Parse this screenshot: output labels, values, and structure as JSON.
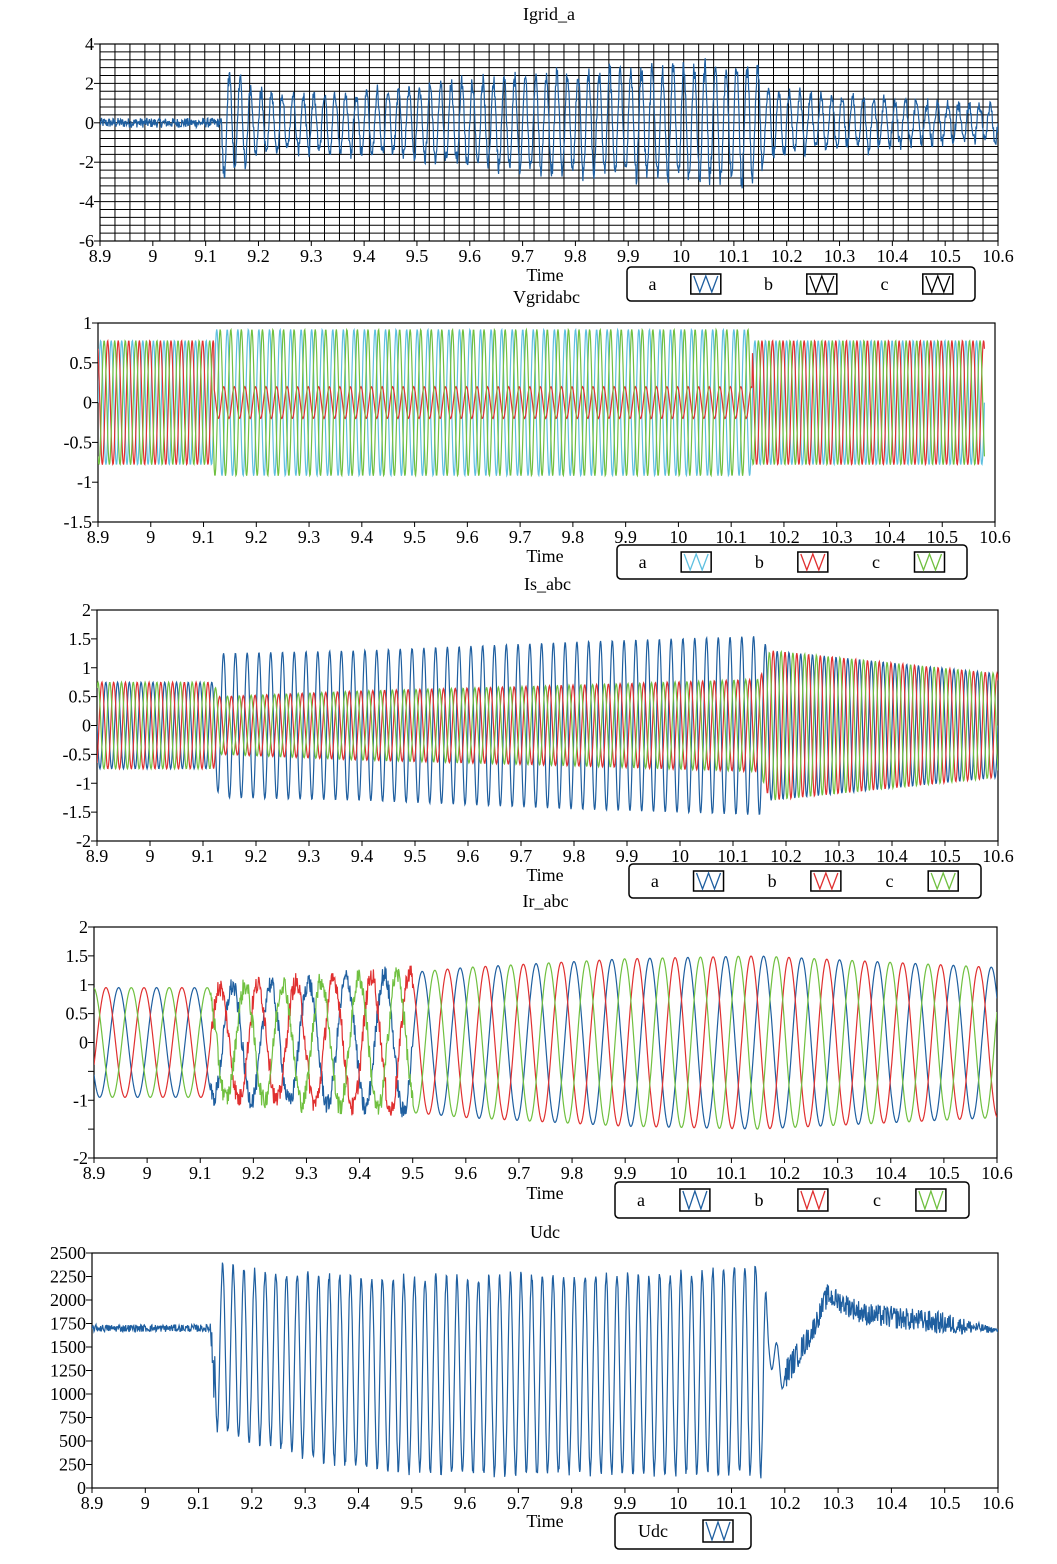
{
  "chart_data": [
    {
      "type": "line",
      "title": "Igrid_a",
      "xlabel": "Time",
      "ylabel": "",
      "xlim": [
        8.9,
        10.6
      ],
      "ylim": [
        -6,
        4
      ],
      "xticks": [
        "8.9",
        "9",
        "9.1",
        "9.2",
        "9.3",
        "9.4",
        "9.5",
        "9.6",
        "9.7",
        "9.8",
        "9.9",
        "10",
        "10.1",
        "10.2",
        "10.3",
        "10.4",
        "10.5",
        "10.6"
      ],
      "yticks": [
        "4",
        "2",
        "0",
        "-2",
        "-4",
        "-6"
      ],
      "grid": true,
      "legend": [
        "a",
        "b",
        "c"
      ],
      "legend_position": "bottom-right",
      "series": [
        {
          "name": "a",
          "color": "#1f5fa0",
          "x": [
            8.9,
            9.0,
            9.12,
            9.13,
            9.14,
            9.2,
            9.3,
            9.4,
            9.5,
            9.6,
            9.7,
            9.8,
            9.9,
            10.0,
            10.1,
            10.15,
            10.16,
            10.2,
            10.3,
            10.4,
            10.5,
            10.6
          ],
          "envelope": [
            0.3,
            0.3,
            0.4,
            3.0,
            3.0,
            1.8,
            1.5,
            1.8,
            2.0,
            2.3,
            2.6,
            2.8,
            3.0,
            3.1,
            3.2,
            3.2,
            2.0,
            1.7,
            1.5,
            1.3,
            1.1,
            1.0
          ]
        }
      ]
    },
    {
      "type": "line",
      "title": "Vgridabc",
      "xlabel": "Time",
      "ylabel": "",
      "xlim": [
        8.9,
        10.6
      ],
      "ylim": [
        -1.5,
        1
      ],
      "xticks": [
        "8.9",
        "9",
        "9.1",
        "9.2",
        "9.3",
        "9.4",
        "9.5",
        "9.6",
        "9.7",
        "9.8",
        "9.9",
        "10",
        "10.1",
        "10.2",
        "10.3",
        "10.4",
        "10.5",
        "10.6"
      ],
      "yticks": [
        "1",
        "0.5",
        "0",
        "-0.5",
        "-1",
        "-1.5"
      ],
      "grid": false,
      "legend": [
        "a",
        "b",
        "c"
      ],
      "legend_position": "bottom-right",
      "series": [
        {
          "name": "a",
          "color": "#5fc0e0",
          "x_start": 8.9,
          "x_end": 10.58,
          "amp_before": 0.78,
          "amp_fault": 0.92,
          "amp_after": 0.78
        },
        {
          "name": "b",
          "color": "#e03030",
          "x_start": 8.9,
          "x_end": 10.58,
          "amp_before": 0.78,
          "amp_fault": 0.2,
          "amp_after": 0.78
        },
        {
          "name": "c",
          "color": "#70c040",
          "x_start": 8.9,
          "x_end": 10.58,
          "amp_before": 0.78,
          "amp_fault": 0.92,
          "amp_after": 0.78
        }
      ],
      "fault_start": 9.12,
      "fault_end": 10.14
    },
    {
      "type": "line",
      "title": "Is_abc",
      "xlabel": "Time",
      "ylabel": "",
      "xlim": [
        8.9,
        10.6
      ],
      "ylim": [
        -2,
        2
      ],
      "xticks": [
        "8.9",
        "9",
        "9.1",
        "9.2",
        "9.3",
        "9.4",
        "9.5",
        "9.6",
        "9.7",
        "9.8",
        "9.9",
        "10",
        "10.1",
        "10.2",
        "10.3",
        "10.4",
        "10.5",
        "10.6"
      ],
      "yticks": [
        "2",
        "1.5",
        "1",
        "0.5",
        "0",
        "-0.5",
        "-1",
        "-1.5",
        "-2"
      ],
      "grid": false,
      "legend": [
        "a",
        "b",
        "c"
      ],
      "legend_position": "bottom-right",
      "series": [
        {
          "name": "a",
          "color": "#1f5fa0",
          "x": [
            8.9,
            9.12,
            9.13,
            9.4,
            9.8,
            10.15,
            10.17,
            10.6
          ],
          "envelope": [
            0.75,
            0.75,
            1.25,
            1.3,
            1.45,
            1.55,
            1.3,
            0.9
          ]
        },
        {
          "name": "b",
          "color": "#e03030",
          "x": [
            8.9,
            9.12,
            9.13,
            9.4,
            9.8,
            10.15,
            10.17,
            10.6
          ],
          "envelope": [
            0.75,
            0.75,
            0.5,
            0.6,
            0.7,
            0.8,
            1.3,
            0.9
          ]
        },
        {
          "name": "c",
          "color": "#70c040",
          "x": [
            8.9,
            9.12,
            9.13,
            9.4,
            9.8,
            10.15,
            10.17,
            10.6
          ],
          "envelope": [
            0.75,
            0.75,
            0.5,
            0.6,
            0.7,
            0.8,
            1.3,
            0.9
          ]
        }
      ]
    },
    {
      "type": "line",
      "title": "Ir_abc",
      "xlabel": "Time",
      "ylabel": "",
      "xlim": [
        8.9,
        10.6
      ],
      "ylim": [
        -2,
        2
      ],
      "xticks": [
        "8.9",
        "9",
        "9.1",
        "9.2",
        "9.3",
        "9.4",
        "9.5",
        "9.6",
        "9.7",
        "9.8",
        "9.9",
        "10",
        "10.1",
        "10.2",
        "10.3",
        "10.4",
        "10.5",
        "10.6"
      ],
      "yticks": [
        "2",
        "1.5",
        "1",
        "0.5",
        "0",
        "",
        "-1",
        "",
        "-2"
      ],
      "grid": false,
      "legend": [
        "a",
        "b",
        "c"
      ],
      "legend_position": "bottom-right",
      "series": [
        {
          "name": "a",
          "color": "#1f5fa0",
          "x": [
            8.9,
            9.12,
            9.3,
            9.6,
            9.9,
            10.15,
            10.6
          ],
          "envelope": [
            0.95,
            0.95,
            1.05,
            1.3,
            1.45,
            1.5,
            1.3
          ]
        },
        {
          "name": "b",
          "color": "#e03030",
          "x": [
            8.9,
            9.12,
            9.3,
            9.6,
            9.9,
            10.15,
            10.6
          ],
          "envelope": [
            0.95,
            0.95,
            1.05,
            1.3,
            1.45,
            1.5,
            1.3
          ]
        },
        {
          "name": "c",
          "color": "#70c040",
          "x": [
            8.9,
            9.12,
            9.3,
            9.6,
            9.9,
            10.15,
            10.6
          ],
          "envelope": [
            0.95,
            0.95,
            1.05,
            1.3,
            1.45,
            1.5,
            1.3
          ]
        }
      ]
    },
    {
      "type": "line",
      "title": "Udc",
      "xlabel": "Time",
      "ylabel": "",
      "xlim": [
        8.9,
        10.6
      ],
      "ylim": [
        0,
        2500
      ],
      "xticks": [
        "8.9",
        "9",
        "9.1",
        "9.2",
        "9.3",
        "9.4",
        "9.5",
        "9.6",
        "9.7",
        "9.8",
        "9.9",
        "10",
        "10.1",
        "10.2",
        "10.3",
        "10.4",
        "10.5",
        "10.6"
      ],
      "yticks": [
        "2500",
        "2250",
        "2000",
        "1750",
        "1500",
        "1250",
        "1000",
        "750",
        "500",
        "250",
        "0"
      ],
      "grid": false,
      "legend": [
        "Udc"
      ],
      "legend_position": "bottom-right",
      "series": [
        {
          "name": "Udc",
          "color": "#1f5fa0",
          "x": [
            8.9,
            9.12,
            9.13,
            9.2,
            9.3,
            9.4,
            9.6,
            9.8,
            10.0,
            10.16,
            10.17,
            10.2,
            10.25,
            10.28,
            10.35,
            10.5,
            10.6
          ],
          "y_max": [
            1750,
            1750,
            2450,
            2350,
            2330,
            2300,
            2300,
            2330,
            2330,
            2450,
            1700,
            1400,
            1800,
            2200,
            2000,
            1900,
            1700
          ],
          "y_min": [
            1650,
            1650,
            600,
            450,
            300,
            150,
            100,
            100,
            100,
            100,
            1300,
            1000,
            1500,
            1900,
            1700,
            1600,
            1650
          ]
        }
      ]
    }
  ]
}
